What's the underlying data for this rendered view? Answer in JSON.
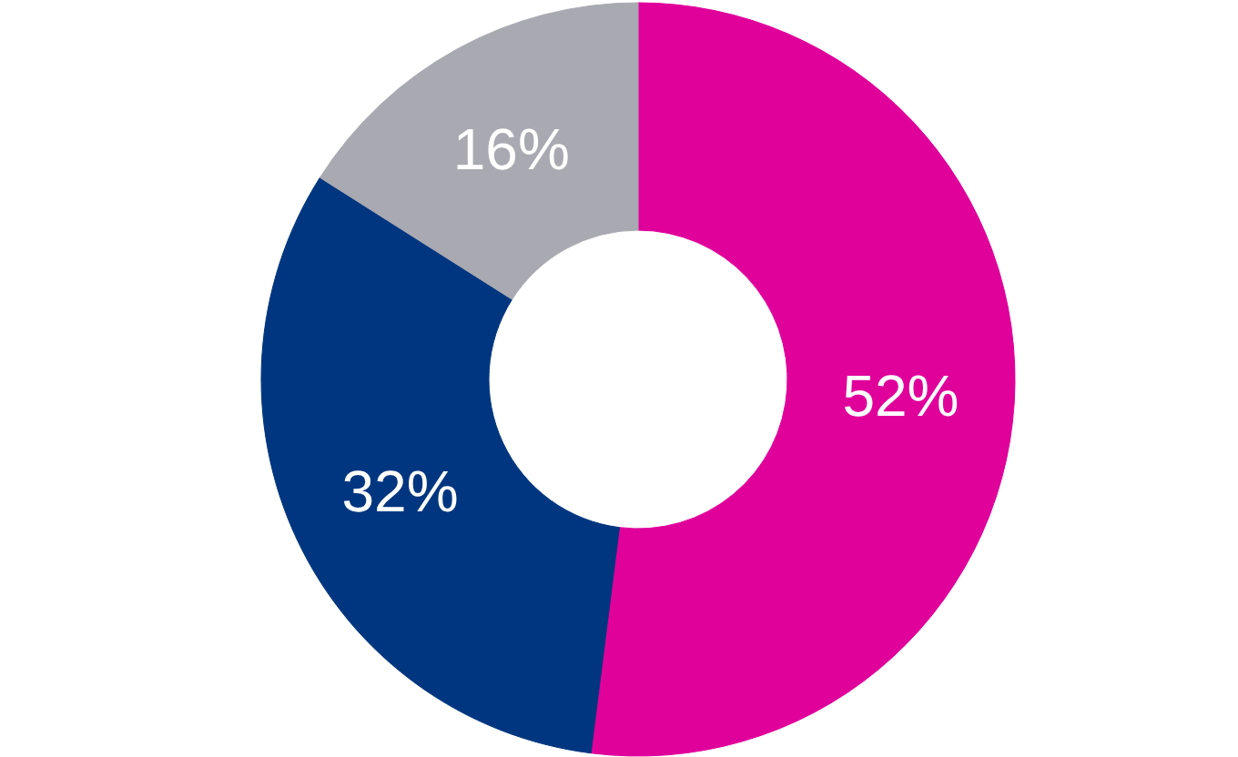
{
  "chart_data": {
    "type": "donut",
    "categories": [
      null,
      null,
      null
    ],
    "values": [
      52,
      32,
      16
    ],
    "colors": [
      "#e0019b",
      "#00367f",
      "#a9a9b1"
    ],
    "value_labels": [
      "52%",
      "32%",
      "16%"
    ]
  }
}
